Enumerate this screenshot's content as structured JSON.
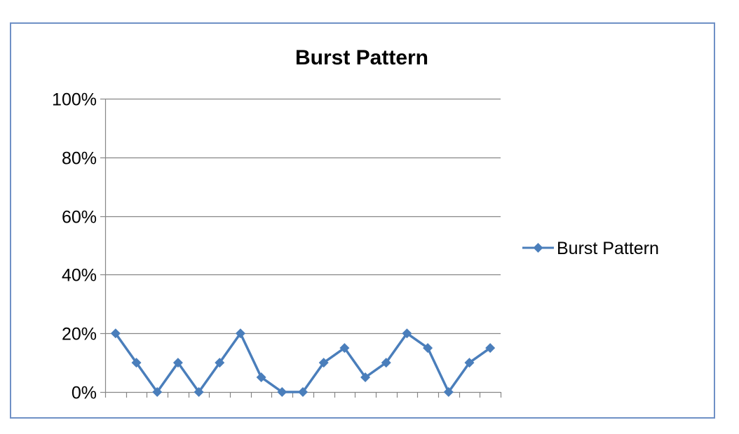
{
  "chart_data": {
    "type": "line",
    "title": "Burst Pattern",
    "xlabel": "",
    "ylabel": "",
    "ylim": [
      0,
      1
    ],
    "y_ticks": [
      0,
      0.2,
      0.4,
      0.6,
      0.8,
      1
    ],
    "y_tick_labels": [
      "0%",
      "20%",
      "40%",
      "60%",
      "80%",
      "100%"
    ],
    "grid": true,
    "legend": "right",
    "series": [
      {
        "name": "Burst Pattern",
        "color": "#4a7ebb",
        "marker": "diamond",
        "values": [
          0.2,
          0.1,
          0.0,
          0.1,
          0.0,
          0.1,
          0.2,
          0.05,
          0.0,
          0.0,
          0.1,
          0.15,
          0.05,
          0.1,
          0.2,
          0.15,
          0.0,
          0.1,
          0.15
        ]
      }
    ]
  },
  "colors": {
    "frame_border": "#6f90c6",
    "gridline": "#868686",
    "axis": "#868686"
  }
}
